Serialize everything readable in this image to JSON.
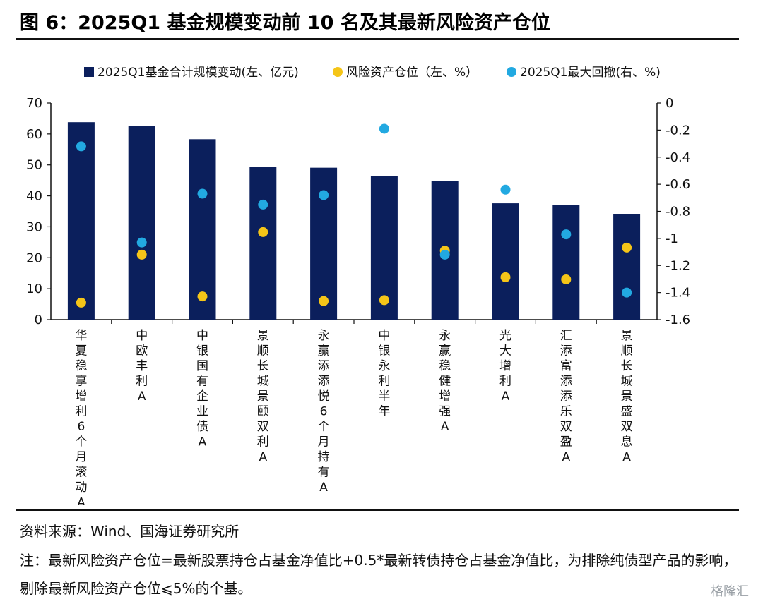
{
  "figure_title": "图 6：2025Q1 基金规模变动前 10 名及其最新风险资产仓位",
  "source_note": "资料来源：Wind、国海证券研究所",
  "footnote": "注：最新风险资产仓位=最新股票持仓占基金净值比+0.5*最新转债持仓占基金净值比，为排除纯债型产品的影响，剔除最新风险资产仓位⩽5%的个基。",
  "watermark": "格隆汇",
  "colors": {
    "bar": "#0b1f5c",
    "risk_position": "#f5c518",
    "max_drawdown": "#22a9e1"
  },
  "chart_data": {
    "type": "bar",
    "categories": [
      "华夏稳享增利6个月滚动A",
      "中欧丰利A",
      "中银国有企业债A",
      "景顺长城景颐双利A",
      "永赢添添悦6个月持有A",
      "中银永利半年",
      "永赢稳健增强A",
      "光大增利A",
      "汇添富添添乐双盈A",
      "景顺长城景盛双息A"
    ],
    "series": [
      {
        "name": "2025Q1基金合计规模变动(左、亿元)",
        "type": "bar",
        "axis": "left",
        "values": [
          63.8,
          62.7,
          58.3,
          49.3,
          49.1,
          46.4,
          44.8,
          37.6,
          37.0,
          34.2
        ]
      },
      {
        "name": "风险资产仓位（左、%）",
        "type": "scatter",
        "axis": "left",
        "values": [
          5.5,
          21.0,
          7.5,
          28.3,
          6.0,
          6.3,
          22.3,
          13.7,
          13.0,
          23.3
        ]
      },
      {
        "name": "2025Q1最大回撤(右、%)",
        "type": "scatter",
        "axis": "right",
        "values": [
          -0.32,
          -1.03,
          -0.67,
          -0.75,
          -0.68,
          -0.19,
          -1.12,
          -0.64,
          -0.97,
          -1.4
        ]
      }
    ],
    "y_left": {
      "min": 0,
      "max": 70,
      "ticks": [
        0,
        10,
        20,
        30,
        40,
        50,
        60,
        70
      ]
    },
    "y_right": {
      "min": -1.6,
      "max": 0,
      "ticks": [
        "0",
        "-0.2",
        "-0.4",
        "-0.6",
        "-0.8",
        "-1",
        "-1.2",
        "-1.4",
        "-1.6"
      ]
    },
    "legend_position": "top",
    "grid": false
  }
}
